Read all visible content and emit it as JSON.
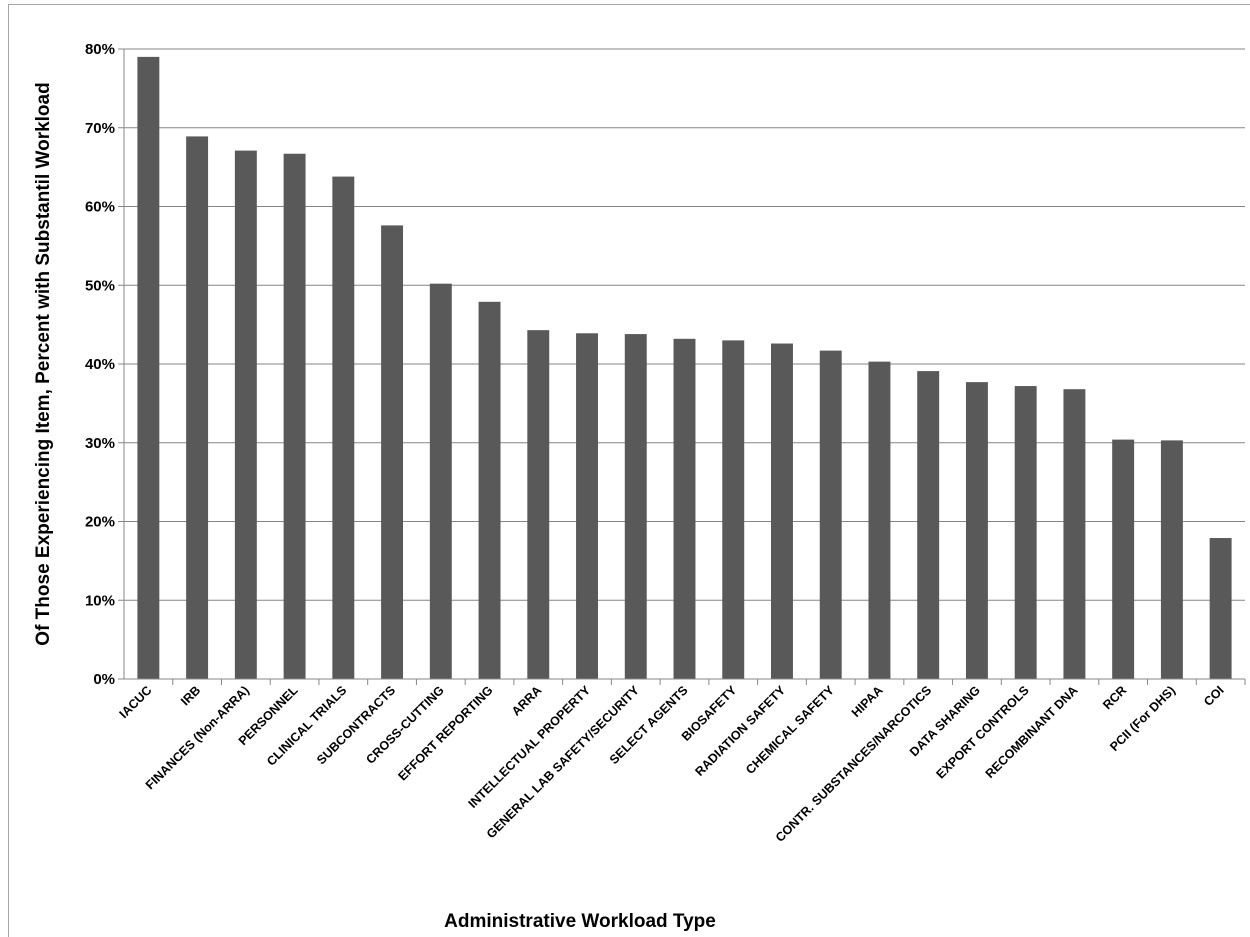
{
  "chart_data": {
    "type": "bar",
    "title": "",
    "xlabel": "Administrative Workload Type",
    "ylabel": "Of Those Experiencing Item, Percent with Substantil Workload",
    "ylim": [
      0,
      80
    ],
    "ytick_values": [
      0,
      10,
      20,
      30,
      40,
      50,
      60,
      70,
      80
    ],
    "ytick_labels": [
      "0%",
      "10%",
      "20%",
      "30%",
      "40%",
      "50%",
      "60%",
      "70%",
      "80%"
    ],
    "grid": true,
    "legend": "none",
    "bar_color": "#595959",
    "categories": [
      "IACUC",
      "IRB",
      "FINANCES (Non-ARRA)",
      "PERSONNEL",
      "CLINICAL TRIALS",
      "SUBCONTRACTS",
      "CROSS-CUTTING",
      "EFFORT REPORTING",
      "ARRA",
      "INTELLECTUAL PROPERTY",
      "GENERAL LAB SAFETY/SECURITY",
      "SELECT AGENTS",
      "BIOSAFETY",
      "RADIATION SAFETY",
      "CHEMICAL SAFETY",
      "HIPAA",
      "CONTR. SUBSTANCES/NARCOTICS",
      "DATA SHARING",
      "EXPORT CONTROLS",
      "RECOMBINANT DNA",
      "RCR",
      "PCII (For DHS)",
      "COI"
    ],
    "values": [
      79.0,
      68.9,
      67.1,
      66.7,
      63.8,
      57.6,
      50.2,
      47.9,
      44.3,
      43.9,
      43.8,
      43.2,
      43.0,
      42.6,
      41.7,
      40.3,
      39.1,
      37.7,
      37.2,
      36.8,
      30.4,
      30.3,
      17.9
    ]
  }
}
